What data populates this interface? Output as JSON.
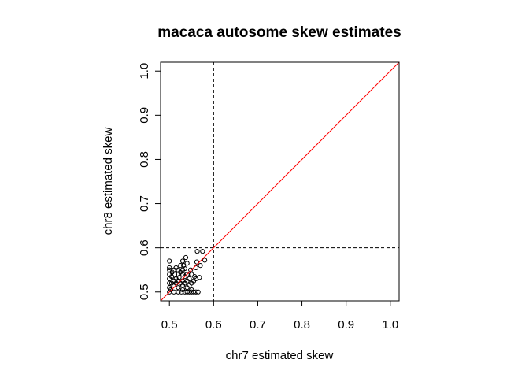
{
  "chart_data": {
    "type": "scatter",
    "title": "macaca autosome skew estimates",
    "xlabel": "chr7 estimated skew",
    "ylabel": "chr8 estimated skew",
    "xlim": [
      0.48,
      1.02
    ],
    "ylim": [
      0.48,
      1.02
    ],
    "x_ticks": [
      "0.5",
      "0.6",
      "0.7",
      "0.8",
      "0.9",
      "1.0"
    ],
    "y_ticks": [
      "0.5",
      "0.6",
      "0.7",
      "0.8",
      "0.9",
      "1.0"
    ],
    "reference_lines": {
      "vertical_x": 0.6,
      "horizontal_y": 0.6,
      "diagonal": {
        "slope": 1,
        "intercept": 0,
        "color": "#ff0000"
      }
    },
    "point_color": "#000000",
    "points": [
      [
        0.5,
        0.5
      ],
      [
        0.5,
        0.51
      ],
      [
        0.5,
        0.52
      ],
      [
        0.5,
        0.53
      ],
      [
        0.5,
        0.54
      ],
      [
        0.5,
        0.55
      ],
      [
        0.5,
        0.555
      ],
      [
        0.5,
        0.57
      ],
      [
        0.503,
        0.505
      ],
      [
        0.505,
        0.52
      ],
      [
        0.505,
        0.535
      ],
      [
        0.506,
        0.545
      ],
      [
        0.51,
        0.5
      ],
      [
        0.51,
        0.515
      ],
      [
        0.51,
        0.525
      ],
      [
        0.51,
        0.55
      ],
      [
        0.512,
        0.54
      ],
      [
        0.515,
        0.52
      ],
      [
        0.515,
        0.53
      ],
      [
        0.515,
        0.555
      ],
      [
        0.52,
        0.5
      ],
      [
        0.52,
        0.51
      ],
      [
        0.52,
        0.525
      ],
      [
        0.52,
        0.54
      ],
      [
        0.52,
        0.55
      ],
      [
        0.522,
        0.533
      ],
      [
        0.525,
        0.52
      ],
      [
        0.525,
        0.545
      ],
      [
        0.525,
        0.56
      ],
      [
        0.527,
        0.5
      ],
      [
        0.53,
        0.505
      ],
      [
        0.53,
        0.515
      ],
      [
        0.53,
        0.525
      ],
      [
        0.53,
        0.54
      ],
      [
        0.53,
        0.55
      ],
      [
        0.53,
        0.57
      ],
      [
        0.532,
        0.56
      ],
      [
        0.535,
        0.5
      ],
      [
        0.535,
        0.52
      ],
      [
        0.535,
        0.535
      ],
      [
        0.535,
        0.553
      ],
      [
        0.537,
        0.578
      ],
      [
        0.54,
        0.5
      ],
      [
        0.54,
        0.51
      ],
      [
        0.54,
        0.525
      ],
      [
        0.54,
        0.54
      ],
      [
        0.54,
        0.565
      ],
      [
        0.545,
        0.5
      ],
      [
        0.545,
        0.515
      ],
      [
        0.545,
        0.53
      ],
      [
        0.548,
        0.55
      ],
      [
        0.55,
        0.5
      ],
      [
        0.55,
        0.505
      ],
      [
        0.55,
        0.52
      ],
      [
        0.55,
        0.54
      ],
      [
        0.555,
        0.5
      ],
      [
        0.555,
        0.525
      ],
      [
        0.557,
        0.535
      ],
      [
        0.56,
        0.5
      ],
      [
        0.56,
        0.53
      ],
      [
        0.56,
        0.555
      ],
      [
        0.562,
        0.568
      ],
      [
        0.563,
        0.592
      ],
      [
        0.565,
        0.5
      ],
      [
        0.568,
        0.533
      ],
      [
        0.57,
        0.56
      ],
      [
        0.575,
        0.592
      ],
      [
        0.58,
        0.572
      ]
    ]
  }
}
